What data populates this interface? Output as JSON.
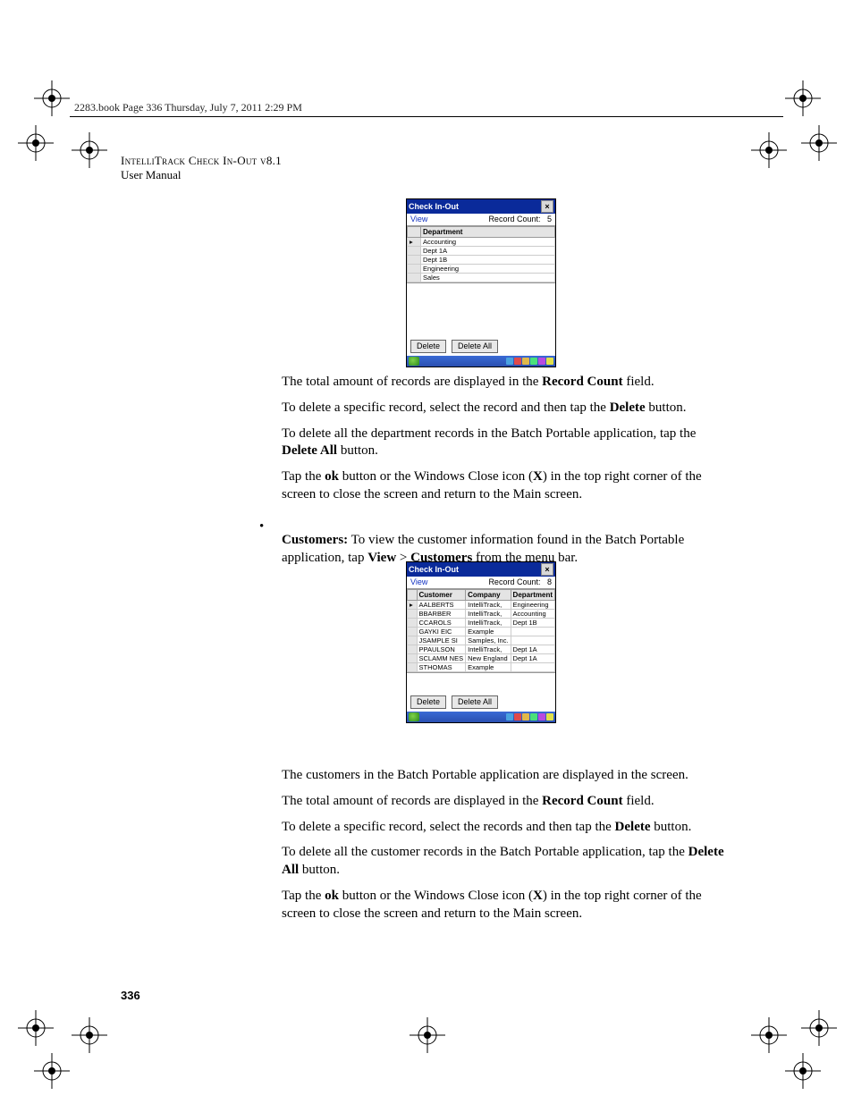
{
  "header": {
    "line": "2283.book  Page 336  Thursday, July 7, 2011  2:29 PM"
  },
  "doc": {
    "title_sc": "IntelliTrack Check In-Out v8.1",
    "subtitle": "User Manual",
    "page_number": "336"
  },
  "screenshot1": {
    "title": "Check In-Out",
    "menu_view": "View",
    "record_count_label": "Record Count:",
    "record_count_value": "5",
    "col1": "Department",
    "rows": [
      "Accounting",
      "Dept 1A",
      "Dept 1B",
      "Engineering",
      "Sales"
    ],
    "btn_delete": "Delete",
    "btn_delete_all": "Delete All"
  },
  "screenshot2": {
    "title": "Check In-Out",
    "menu_view": "View",
    "record_count_label": "Record Count:",
    "record_count_value": "8",
    "cols": [
      "Customer",
      "Company",
      "Department"
    ],
    "rows": [
      [
        "AALBERTS",
        "IntelliTrack,",
        "Engineering"
      ],
      [
        "BBARBER",
        "IntelliTrack,",
        "Accounting"
      ],
      [
        "CCAROLS",
        "IntelliTrack,",
        "Dept 1B"
      ],
      [
        "GAYKI EIC",
        "Example",
        ""
      ],
      [
        "JSAMPLE SI",
        "Samples, Inc.",
        ""
      ],
      [
        "PPAULSON",
        "IntelliTrack,",
        "Dept 1A"
      ],
      [
        "SCLAMM NES",
        "New England",
        "Dept 1A"
      ],
      [
        "STHOMAS",
        "Example",
        ""
      ]
    ],
    "btn_delete": "Delete",
    "btn_delete_all": "Delete All"
  },
  "body": {
    "p1a": "The total amount of records are displayed in the ",
    "p1b": "Record Count",
    "p1c": " field.",
    "p2a": "To delete a specific record, select the record and then tap the ",
    "p2b": "Delete",
    "p2c": " button.",
    "p3a": "To delete all the department records in the Batch Portable application, tap the ",
    "p3b": "Delete All",
    "p3c": " button.",
    "p4a": "Tap the ",
    "p4b": "ok",
    "p4c": " button or the Windows Close icon (",
    "p4d": "X",
    "p4e": ") in the top right corner of the screen to close the screen and return to the Main screen.",
    "bul_a": "Customers:",
    "bul_b": " To view the customer information found in the Batch Portable application, tap ",
    "bul_c": "View",
    "bul_d": " > ",
    "bul_e": "Customers",
    "bul_f": " from the menu bar.",
    "p5": "The customers in the Batch Portable application are displayed in the screen.",
    "p6a": "The total amount of records are displayed in the ",
    "p6b": "Record Count",
    "p6c": " field.",
    "p7a": "To delete a specific record, select the records and then tap the ",
    "p7b": "Delete",
    "p7c": " button.",
    "p8a": "To delete all the customer records in the Batch Portable application, tap the ",
    "p8b": "Delete All",
    "p8c": " button.",
    "p9a": "Tap the ",
    "p9b": "ok",
    "p9c": " button or the Windows Close icon (",
    "p9d": "X",
    "p9e": ") in the top right corner of the screen to close the screen and return to the Main screen."
  },
  "tray_colors": [
    "#4aa3e0",
    "#e04a4a",
    "#e0b84a",
    "#4ae07a",
    "#b84ae0",
    "#e0e04a"
  ]
}
